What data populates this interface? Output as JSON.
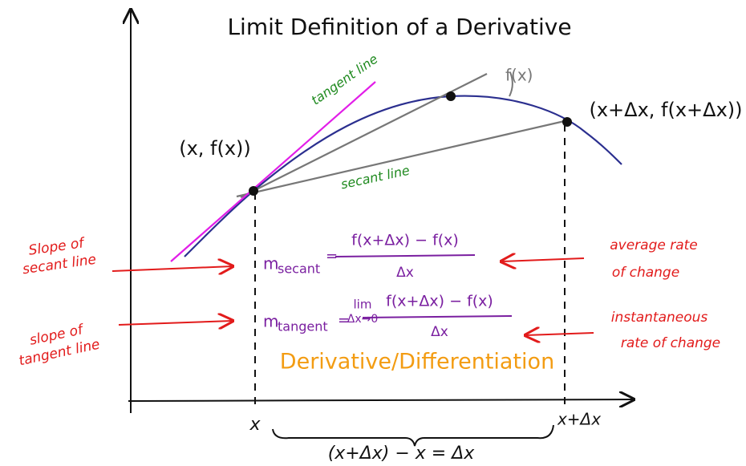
{
  "title": "Limit Definition of a Derivative",
  "curve_labels": {
    "tangent": "tangent line",
    "function": "f(x)",
    "secant": "secant line"
  },
  "points": {
    "left": "(x, f(x))",
    "right": "(x+Δx, f(x+Δx))"
  },
  "formulas": {
    "secant": {
      "m": "m",
      "sub": "secant",
      "eq": "=",
      "numerator": "f(x+Δx) − f(x)",
      "denominator": "Δx"
    },
    "tangent": {
      "m": "m",
      "sub": "tangent",
      "eq": "=",
      "lim": "lim",
      "lim_sub": "Δx→0",
      "numerator": "f(x+Δx) − f(x)",
      "denominator": "Δx"
    }
  },
  "annotations": {
    "slope_secant": [
      "Slope of",
      "secant line"
    ],
    "slope_tangent": [
      "slope of",
      "tangent line"
    ],
    "average": [
      "average rate",
      "of change"
    ],
    "instantaneous": [
      "instantaneous",
      "rate of change"
    ]
  },
  "derivative": "Derivative/Differentiation",
  "axis": {
    "x": "x",
    "x_dx": "x+Δx",
    "brace": "(x+Δx) − x = Δx"
  }
}
